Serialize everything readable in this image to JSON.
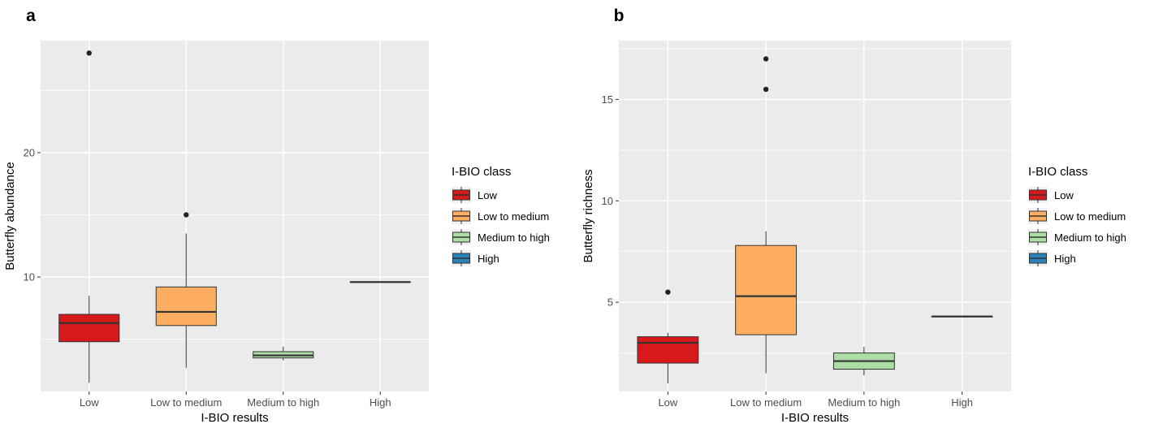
{
  "chart_data": [
    {
      "panel": "a",
      "type": "boxplot",
      "xlabel": "I-BIO results",
      "ylabel": "Butterfly abundance",
      "ylim": [
        0.8,
        29
      ],
      "yticks": [
        10,
        20
      ],
      "categories": [
        "Low",
        "Low to medium",
        "Medium to high",
        "High"
      ],
      "boxes": [
        {
          "category": "Low",
          "lower_whisker": 1.5,
          "q1": 4.8,
          "median": 6.3,
          "q3": 7.0,
          "upper_whisker": 8.5,
          "outliers": [
            28
          ]
        },
        {
          "category": "Low to medium",
          "lower_whisker": 2.7,
          "q1": 6.1,
          "median": 7.2,
          "q3": 9.2,
          "upper_whisker": 13.5,
          "outliers": [
            15
          ]
        },
        {
          "category": "Medium to high",
          "lower_whisker": 3.3,
          "q1": 3.5,
          "median": 3.7,
          "q3": 4.0,
          "upper_whisker": 4.4,
          "outliers": []
        },
        {
          "category": "High",
          "lower_whisker": 9.6,
          "q1": 9.6,
          "median": 9.6,
          "q3": 9.6,
          "upper_whisker": 9.6,
          "outliers": []
        }
      ],
      "legend": {
        "title": "I-BIO class",
        "position": "right",
        "entries": [
          "Low",
          "Low to medium",
          "Medium to high",
          "High"
        ]
      },
      "grid": true
    },
    {
      "panel": "b",
      "type": "boxplot",
      "xlabel": "I-BIO results",
      "ylabel": "Butterfly richness",
      "ylim": [
        0.6,
        17.9
      ],
      "yticks": [
        5,
        10,
        15
      ],
      "categories": [
        "Low",
        "Low to medium",
        "Medium to high",
        "High"
      ],
      "boxes": [
        {
          "category": "Low",
          "lower_whisker": 1.0,
          "q1": 2.0,
          "median": 3.0,
          "q3": 3.3,
          "upper_whisker": 3.5,
          "outliers": [
            5.5
          ]
        },
        {
          "category": "Low to medium",
          "lower_whisker": 1.5,
          "q1": 3.4,
          "median": 5.3,
          "q3": 7.8,
          "upper_whisker": 8.5,
          "outliers": [
            15.5,
            17
          ]
        },
        {
          "category": "Medium to high",
          "lower_whisker": 1.4,
          "q1": 1.7,
          "median": 2.1,
          "q3": 2.5,
          "upper_whisker": 2.8,
          "outliers": []
        },
        {
          "category": "High",
          "lower_whisker": 4.3,
          "q1": 4.3,
          "median": 4.3,
          "q3": 4.3,
          "upper_whisker": 4.3,
          "outliers": []
        }
      ],
      "legend": {
        "title": "I-BIO class",
        "position": "right",
        "entries": [
          "Low",
          "Low to medium",
          "Medium to high",
          "High"
        ]
      },
      "grid": true
    }
  ],
  "colors": {
    "Low": "#d7191c",
    "Low to medium": "#fdae61",
    "Medium to high": "#abdda4",
    "High": "#2b83ba",
    "panel_bg": "#ebebeb",
    "grid": "#ffffff",
    "box_line": "#333333"
  }
}
